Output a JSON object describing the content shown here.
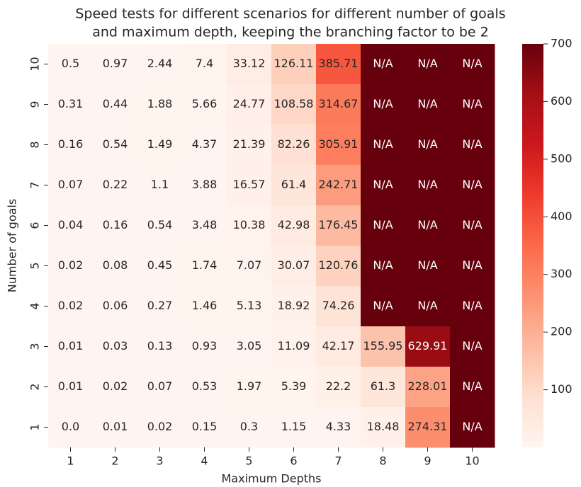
{
  "chart_data": {
    "type": "heatmap",
    "title": [
      "Speed tests for different scenarios for different number of goals",
      "and maximum depth, keeping the branching factor to be 2"
    ],
    "x_label": "Maximum Depths",
    "y_label": "Number of goals",
    "x_categories": [
      "1",
      "2",
      "3",
      "4",
      "5",
      "6",
      "7",
      "8",
      "9",
      "10"
    ],
    "y_categories": [
      "10",
      "9",
      "8",
      "7",
      "6",
      "5",
      "4",
      "3",
      "2",
      "1"
    ],
    "values": [
      [
        0.5,
        0.97,
        2.44,
        7.4,
        33.12,
        126.11,
        385.71,
        null,
        null,
        null
      ],
      [
        0.31,
        0.44,
        1.88,
        5.66,
        24.77,
        108.58,
        314.67,
        null,
        null,
        null
      ],
      [
        0.16,
        0.54,
        1.49,
        4.37,
        21.39,
        82.26,
        305.91,
        null,
        null,
        null
      ],
      [
        0.07,
        0.22,
        1.1,
        3.88,
        16.57,
        61.4,
        242.71,
        null,
        null,
        null
      ],
      [
        0.04,
        0.16,
        0.54,
        3.48,
        10.38,
        42.98,
        176.45,
        null,
        null,
        null
      ],
      [
        0.02,
        0.08,
        0.45,
        1.74,
        7.07,
        30.07,
        120.76,
        null,
        null,
        null
      ],
      [
        0.02,
        0.06,
        0.27,
        1.46,
        5.13,
        18.92,
        74.26,
        null,
        null,
        null
      ],
      [
        0.01,
        0.03,
        0.13,
        0.93,
        3.05,
        11.09,
        42.17,
        155.95,
        629.91,
        null
      ],
      [
        0.01,
        0.02,
        0.07,
        0.53,
        1.97,
        5.39,
        22.2,
        61.3,
        228.01,
        null
      ],
      [
        0.0,
        0.01,
        0.02,
        0.15,
        0.3,
        1.15,
        4.33,
        18.48,
        274.31,
        null
      ]
    ],
    "value_labels": [
      [
        null,
        null,
        null,
        null,
        null,
        null,
        null,
        "N/A",
        "N/A",
        "N/A"
      ],
      [
        null,
        null,
        null,
        null,
        null,
        null,
        null,
        "N/A",
        "N/A",
        "N/A"
      ],
      [
        null,
        null,
        null,
        null,
        null,
        null,
        null,
        "N/A",
        "N/A",
        "N/A"
      ],
      [
        null,
        null,
        null,
        null,
        null,
        null,
        null,
        "N/A",
        "N/A",
        "N/A"
      ],
      [
        null,
        null,
        null,
        null,
        null,
        null,
        null,
        "N/A",
        "N/A",
        "N/A"
      ],
      [
        null,
        null,
        null,
        null,
        null,
        null,
        null,
        "N/A",
        "N/A",
        "N/A"
      ],
      [
        null,
        null,
        null,
        null,
        null,
        null,
        null,
        "N/A",
        "N/A",
        "N/A"
      ],
      [
        null,
        null,
        null,
        null,
        null,
        null,
        null,
        null,
        null,
        "N/A"
      ],
      [
        null,
        null,
        null,
        null,
        null,
        null,
        null,
        null,
        null,
        "N/A"
      ],
      [
        "0.0",
        null,
        null,
        null,
        null,
        null,
        null,
        null,
        null,
        "N/A"
      ]
    ],
    "colormap": "Reds",
    "na_color": "#67000d",
    "clim": [
      0,
      700
    ],
    "cticks": [
      100,
      200,
      300,
      400,
      500,
      600,
      700
    ]
  }
}
